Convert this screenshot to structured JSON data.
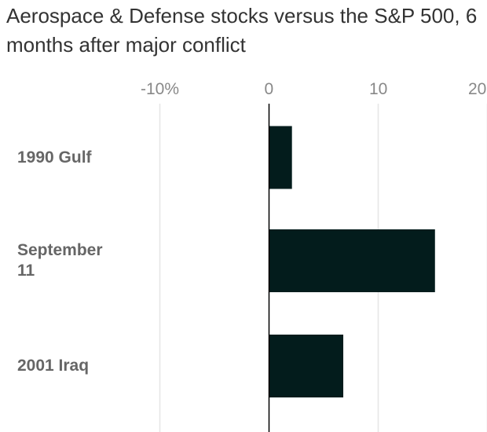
{
  "title": "Aerospace & Defense stocks versus the S&P 500, 6 months after major conflict",
  "chart_data": {
    "type": "bar",
    "orientation": "horizontal",
    "title": "Aerospace & Defense stocks versus the S&P 500, 6 months after major conflict",
    "categories": [
      "1990 Gulf",
      "September 11",
      "2001 Iraq"
    ],
    "category_labels": [
      [
        "1990 Gulf"
      ],
      [
        "September",
        "11"
      ],
      [
        "2001 Iraq"
      ]
    ],
    "values": [
      2.1,
      15.2,
      6.8
    ],
    "unit": "%",
    "xlim": [
      -10,
      20
    ],
    "xticks": [
      -10,
      0,
      10,
      20
    ],
    "xtick_labels": [
      "-10%",
      "0",
      "10",
      "20"
    ],
    "grid": true,
    "bar_color": "#031c1c",
    "grid_color": "#e6e6e6"
  }
}
